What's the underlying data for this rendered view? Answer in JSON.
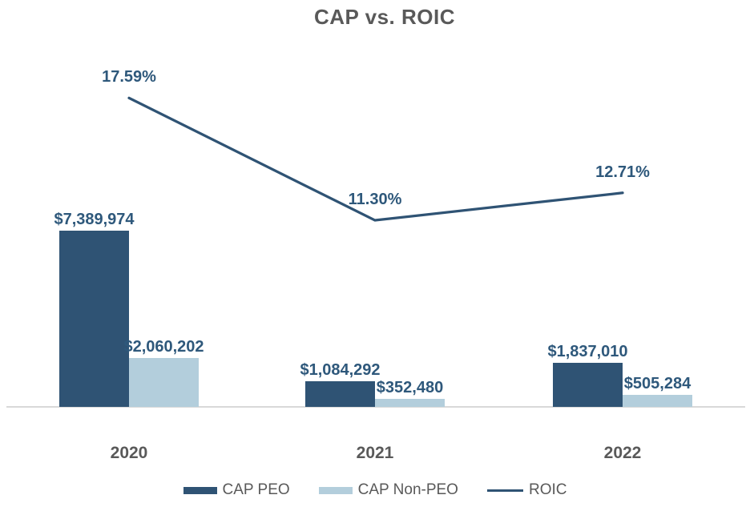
{
  "chart_data": {
    "type": "bar",
    "subtype": "bar-line-combo",
    "title": "CAP vs. ROIC",
    "categories": [
      "2020",
      "2021",
      "2022"
    ],
    "series": [
      {
        "name": "CAP PEO",
        "type": "bar",
        "color": "#2F5374",
        "values": [
          7389974,
          1084292,
          1837010
        ],
        "labels": [
          "$7,389,974",
          "$1,084,292",
          "$1,837,010"
        ]
      },
      {
        "name": "CAP Non-PEO",
        "type": "bar",
        "color": "#B3CEDC",
        "values": [
          2060202,
          352480,
          505284
        ],
        "labels": [
          "$2,060,202",
          "$352,480",
          "$505,284"
        ]
      },
      {
        "name": "ROIC",
        "type": "line",
        "color": "#2F5374",
        "values": [
          17.59,
          11.3,
          12.71
        ],
        "labels": [
          "17.59%",
          "11.30%",
          "12.71%"
        ]
      }
    ],
    "value_axis": {
      "visible": false,
      "min": 0
    },
    "percent_axis": {
      "visible": false
    },
    "gridlines": false,
    "legend": {
      "position": "bottom",
      "items": [
        "CAP PEO",
        "CAP Non-PEO",
        "ROIC"
      ]
    },
    "colors": {
      "data_label": "#2E587B",
      "axis_text": "#595959",
      "title_text": "#595959",
      "axis_line": "#D9D9D9",
      "background": "#FFFFFF"
    }
  }
}
